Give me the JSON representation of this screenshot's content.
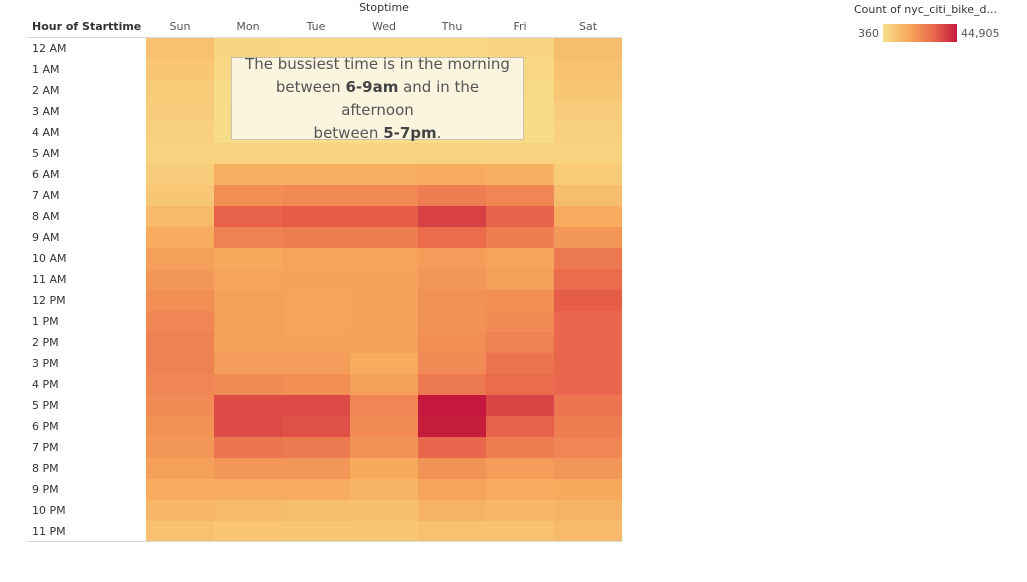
{
  "chart_data": {
    "type": "heatmap",
    "column_title": "Stoptime",
    "row_title": "Hour of Starttime",
    "x": [
      "Sun",
      "Mon",
      "Tue",
      "Wed",
      "Thu",
      "Fri",
      "Sat"
    ],
    "y": [
      "12 AM",
      "1 AM",
      "2 AM",
      "3 AM",
      "4 AM",
      "5 AM",
      "6 AM",
      "7 AM",
      "8 AM",
      "9 AM",
      "10 AM",
      "11 AM",
      "12 PM",
      "1 PM",
      "2 PM",
      "3 PM",
      "4 PM",
      "5 PM",
      "6 PM",
      "7 PM",
      "8 PM",
      "9 PM",
      "10 PM",
      "11 PM"
    ],
    "values": [
      [
        9000,
        3000,
        2500,
        2500,
        2500,
        3500,
        10000
      ],
      [
        7500,
        2000,
        1500,
        1500,
        1500,
        2500,
        8500
      ],
      [
        6000,
        1200,
        1000,
        1000,
        1000,
        1800,
        7000
      ],
      [
        5000,
        900,
        700,
        700,
        700,
        1200,
        5500
      ],
      [
        4500,
        700,
        500,
        500,
        500,
        900,
        4500
      ],
      [
        4000,
        4000,
        4000,
        4000,
        4000,
        4000,
        4000
      ],
      [
        5000,
        14000,
        14500,
        14500,
        15000,
        13500,
        6000
      ],
      [
        7000,
        22000,
        23000,
        23000,
        26000,
        24000,
        10000
      ],
      [
        11000,
        32000,
        33000,
        33000,
        38000,
        32000,
        15000
      ],
      [
        15000,
        25000,
        26000,
        26000,
        30000,
        26000,
        20000
      ],
      [
        18000,
        16000,
        17000,
        17000,
        19000,
        17000,
        27000
      ],
      [
        20000,
        17000,
        17500,
        17500,
        20000,
        18000,
        30000
      ],
      [
        22000,
        18000,
        17000,
        17500,
        21000,
        22000,
        33000
      ],
      [
        24000,
        18000,
        17000,
        17500,
        21000,
        23000,
        31000
      ],
      [
        25000,
        18000,
        17500,
        18000,
        22000,
        25000,
        31000
      ],
      [
        25000,
        19000,
        19000,
        15500,
        23000,
        28000,
        31000
      ],
      [
        24000,
        23000,
        22000,
        18000,
        27000,
        30000,
        31000
      ],
      [
        23000,
        36000,
        36000,
        24000,
        44905,
        37000,
        28000
      ],
      [
        21000,
        36000,
        35000,
        23000,
        44000,
        32000,
        26000
      ],
      [
        20000,
        28000,
        27000,
        21000,
        31000,
        26000,
        24000
      ],
      [
        18000,
        20000,
        20000,
        16000,
        21000,
        19000,
        20000
      ],
      [
        15000,
        15000,
        15000,
        13000,
        17000,
        15000,
        16000
      ],
      [
        12000,
        11000,
        10000,
        9500,
        13000,
        12000,
        13000
      ],
      [
        9000,
        7500,
        7000,
        7000,
        9000,
        9000,
        11000
      ]
    ],
    "legend": {
      "title": "Count of nyc_citi_bike_d...",
      "min": 360,
      "max": 44905,
      "min_label": "360",
      "max_label": "44,905",
      "placement": "top-right",
      "colors": [
        "#f8de8a",
        "#f7a95c",
        "#e9654b",
        "#c4183c"
      ]
    },
    "annotation": {
      "line1": "The bussiest time is in the morning",
      "line2_pre": "between ",
      "line2_b": "6-9am",
      "line2_post": " and in the afternoon",
      "line3_pre": "between ",
      "line3_b": "5-7pm",
      "line3_post": "."
    }
  }
}
